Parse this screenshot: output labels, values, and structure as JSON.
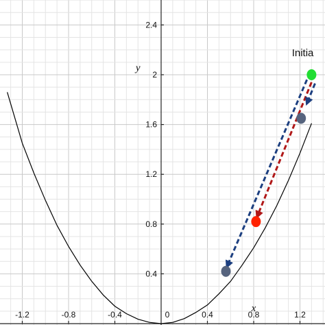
{
  "chart_data": {
    "type": "line",
    "xlabel": "x",
    "ylabel": "y",
    "xlim": [
      -1.33,
      1.33
    ],
    "ylim": [
      0,
      2.64
    ],
    "grid": true,
    "x_ticks": [
      "-1.2",
      "-0.8",
      "-0.4",
      "0",
      "0.4",
      "0.8",
      "1.2"
    ],
    "y_ticks": [
      "0.4",
      "0.8",
      "1.2",
      "1.6",
      "2",
      "2.4"
    ],
    "curve": {
      "color": "#000000",
      "x": [
        -1.33,
        -1.2,
        -1.1,
        -1.0,
        -0.9,
        -0.8,
        -0.7,
        -0.6,
        -0.5,
        -0.4,
        -0.3,
        -0.2,
        -0.1,
        0.0,
        0.1,
        0.2,
        0.3,
        0.4,
        0.5,
        0.6,
        0.7,
        0.8,
        0.9,
        1.0,
        1.1,
        1.2,
        1.3
      ],
      "y": [
        1.86,
        1.45,
        1.21,
        0.99,
        0.79,
        0.62,
        0.47,
        0.34,
        0.23,
        0.14,
        0.08,
        0.035,
        0.01,
        0.0,
        0.01,
        0.04,
        0.09,
        0.15,
        0.24,
        0.34,
        0.47,
        0.61,
        0.77,
        0.95,
        1.15,
        1.37,
        1.61
      ]
    },
    "points": [
      {
        "x": 1.3,
        "y": 2.0,
        "color": "#22dd33"
      },
      {
        "x": 1.21,
        "y": 1.65,
        "color": "#56647e"
      },
      {
        "x": 0.82,
        "y": 0.82,
        "color": "#ff2200"
      },
      {
        "x": 0.56,
        "y": 0.42,
        "color": "#56647e"
      }
    ],
    "arrows": [
      {
        "from": [
          1.26,
          1.96
        ],
        "to": [
          0.57,
          0.46
        ],
        "color": "#1c3f80"
      },
      {
        "from": [
          1.3,
          1.94
        ],
        "to": [
          0.83,
          0.86
        ],
        "color": "#b01818"
      },
      {
        "from": [
          1.33,
          1.93
        ],
        "to": [
          1.26,
          1.77
        ],
        "color": "#1c3f80"
      }
    ],
    "annotations": [
      {
        "text": "Initia",
        "x": 1.13,
        "y": 2.15
      }
    ]
  }
}
